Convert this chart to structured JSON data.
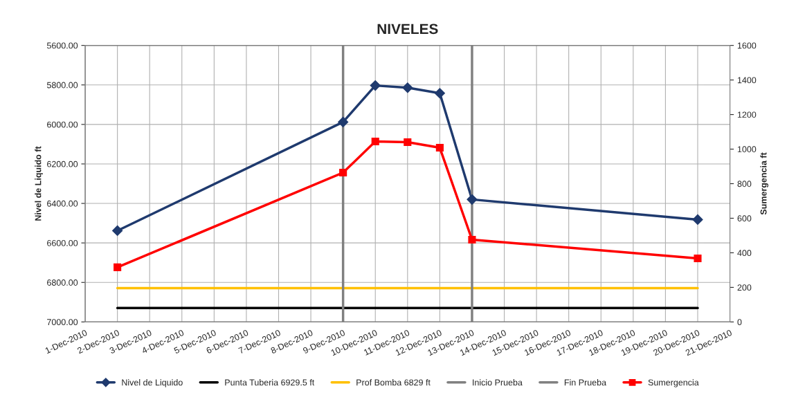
{
  "chart_data": {
    "type": "line",
    "title": "NIVELES",
    "ylabel": "Nivel de Liquido ft",
    "y2label": "Sumergencia ft",
    "series": [
      {
        "name": "Nivel de Liquido",
        "color": "#1f3a6e",
        "marker": "diamond",
        "x": [
          "2010-12-02",
          "2010-12-09",
          "2010-12-10",
          "2010-12-11",
          "2010-12-12",
          "2010-12-13",
          "2010-12-20"
        ],
        "values": [
          6538,
          5988,
          5803,
          5814,
          5842,
          6380,
          6482
        ]
      },
      {
        "name": "Punta Tuberia 6929.5 ft",
        "color": "#000000",
        "x": [
          "2010-12-02",
          "2010-12-20"
        ],
        "values": [
          6929.5,
          6929.5
        ]
      },
      {
        "name": "Prof Bomba 6829 ft",
        "color": "#ffc000",
        "x": [
          "2010-12-02",
          "2010-12-20"
        ],
        "values": [
          6829,
          6829
        ]
      },
      {
        "name": "Inicio Prueba",
        "color": "#808080",
        "x": [
          "2010-12-09",
          "2010-12-09"
        ],
        "values": [
          5600,
          7000
        ]
      },
      {
        "name": "Fin Prueba",
        "color": "#808080",
        "x": [
          "2010-12-13",
          "2010-12-13"
        ],
        "values": [
          5600,
          7000
        ]
      },
      {
        "name": "Sumergencia",
        "color": "#ff0000",
        "marker": "square",
        "axis": "y2",
        "x": [
          "2010-12-02",
          "2010-12-09",
          "2010-12-10",
          "2010-12-11",
          "2010-12-12",
          "2010-12-13",
          "2010-12-20"
        ],
        "values": [
          316,
          864,
          1044,
          1040,
          1008,
          476,
          368
        ]
      }
    ],
    "xlim": [
      "2010-12-01",
      "2010-12-21"
    ],
    "xticks": [
      {
        "value": "2010-12-01",
        "label": "1-Dec-2010"
      },
      {
        "value": "2010-12-02",
        "label": "2-Dec-2010"
      },
      {
        "value": "2010-12-03",
        "label": "3-Dec-2010"
      },
      {
        "value": "2010-12-04",
        "label": "4-Dec-2010"
      },
      {
        "value": "2010-12-05",
        "label": "5-Dec-2010"
      },
      {
        "value": "2010-12-06",
        "label": "6-Dec-2010"
      },
      {
        "value": "2010-12-07",
        "label": "7-Dec-2010"
      },
      {
        "value": "2010-12-08",
        "label": "8-Dec-2010"
      },
      {
        "value": "2010-12-09",
        "label": "9-Dec-2010"
      },
      {
        "value": "2010-12-10",
        "label": "10-Dec-2010"
      },
      {
        "value": "2010-12-11",
        "label": "11-Dec-2010"
      },
      {
        "value": "2010-12-12",
        "label": "12-Dec-2010"
      },
      {
        "value": "2010-12-13",
        "label": "13-Dec-2010"
      },
      {
        "value": "2010-12-14",
        "label": "14-Dec-2010"
      },
      {
        "value": "2010-12-15",
        "label": "15-Dec-2010"
      },
      {
        "value": "2010-12-16",
        "label": "16-Dec-2010"
      },
      {
        "value": "2010-12-17",
        "label": "17-Dec-2010"
      },
      {
        "value": "2010-12-18",
        "label": "18-Dec-2010"
      },
      {
        "value": "2010-12-19",
        "label": "19-Dec-2010"
      },
      {
        "value": "2010-12-20",
        "label": "20-Dec-2010"
      },
      {
        "value": "2010-12-21",
        "label": "21-Dec-2010"
      }
    ],
    "ylim": [
      7000,
      5600
    ],
    "yticks": [
      {
        "value": 5600,
        "label": "5600.00"
      },
      {
        "value": 5800,
        "label": "5800.00"
      },
      {
        "value": 6000,
        "label": "6000.00"
      },
      {
        "value": 6200,
        "label": "6200.00"
      },
      {
        "value": 6400,
        "label": "6400.00"
      },
      {
        "value": 6600,
        "label": "6600.00"
      },
      {
        "value": 6800,
        "label": "6800.00"
      },
      {
        "value": 7000,
        "label": "7000.00"
      }
    ],
    "y2lim": [
      0,
      1600
    ],
    "y2ticks": [
      0,
      200,
      400,
      600,
      800,
      1000,
      1200,
      1400,
      1600
    ],
    "grid": true,
    "legend": "bottom",
    "line_style": "solid"
  }
}
